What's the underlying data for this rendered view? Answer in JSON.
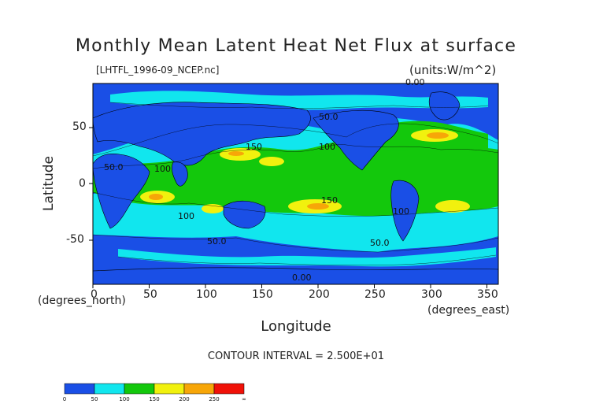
{
  "title": "Monthly Mean Latent Heat Net Flux at surface",
  "file_label": "[LHTFL_1996-09_NCEP.nc]",
  "units_label": "(units:W/m^2)",
  "contour_interval": "CONTOUR INTERVAL = 2.500E+01",
  "axes": {
    "x_label": "Longitude",
    "y_label": "Latitude",
    "x_sub": "(degrees_east)",
    "y_sub": "(degrees_north)",
    "x_ticks": [
      "0",
      "50",
      "100",
      "150",
      "200",
      "250",
      "300",
      "350"
    ],
    "y_ticks": [
      "50",
      "0",
      "-50"
    ]
  },
  "contour_labels": [
    "0.00",
    "50.0",
    "100",
    "150",
    "100",
    "50.0",
    "150",
    "100",
    "50.0",
    "100",
    "0.00",
    "50.0"
  ],
  "colorbar": {
    "labels": [
      "0",
      "50",
      "100",
      "150",
      "200",
      "250",
      "∞"
    ],
    "colors": [
      "#1a4fe6",
      "#11e6ee",
      "#13c80c",
      "#f1f10e",
      "#f7a608",
      "#f01108"
    ]
  },
  "colors": {
    "low": "#1a4fe6",
    "cyan": "#11e6ee",
    "green": "#13c80c",
    "yellow": "#f1f10e",
    "orange": "#f7a608",
    "red": "#f01108"
  }
}
